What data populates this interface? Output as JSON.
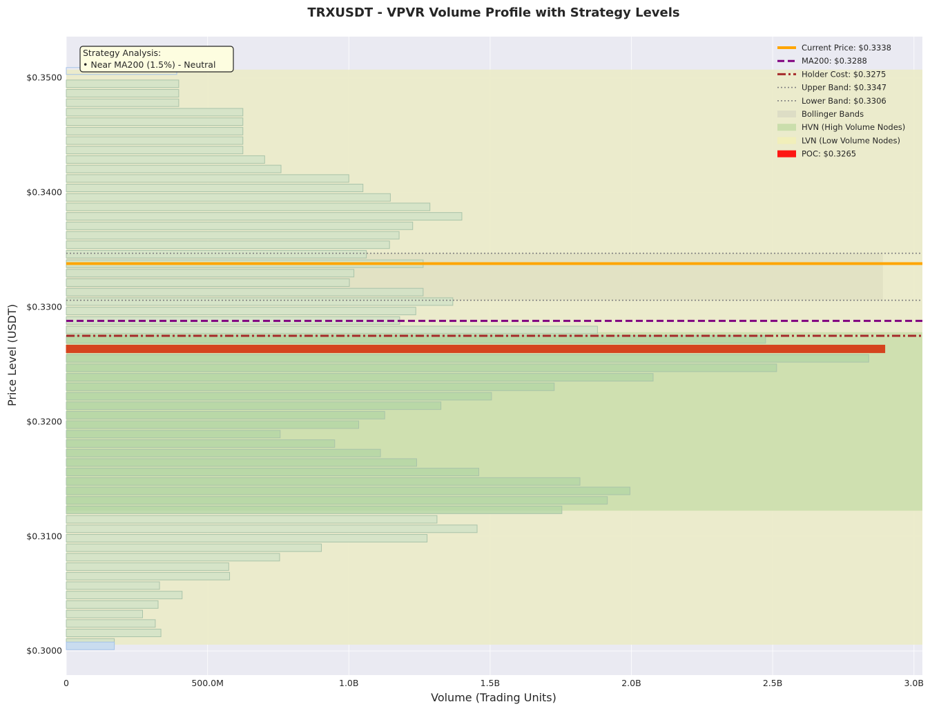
{
  "chart_data": {
    "type": "bar",
    "orientation": "horizontal",
    "title": "TRXUSDT - VPVR Volume Profile with Strategy Levels",
    "xlabel": "Volume (Trading Units)",
    "ylabel": "Price Level (USDT)",
    "xlim": [
      0,
      3030000000
    ],
    "ylim": [
      0.2979,
      0.3536
    ],
    "x_ticks": [
      0,
      500000000,
      1000000000,
      1500000000,
      2000000000,
      2500000000,
      3000000000
    ],
    "x_tick_labels": [
      "0",
      "500.0M",
      "1.0B",
      "1.5B",
      "2.0B",
      "2.5B",
      "3.0B"
    ],
    "y_ticks": [
      0.3,
      0.31,
      0.32,
      0.33,
      0.34,
      0.35
    ],
    "y_tick_labels": [
      "$0.3000",
      "$0.3100",
      "$0.3200",
      "$0.3300",
      "$0.3400",
      "$0.3500"
    ],
    "grid": true,
    "legend_position": "top-right",
    "bars": {
      "price_start": 0.30075,
      "price_step": 0.000826,
      "bar_height": 0.00066,
      "volumes": [
        170000000,
        335000000,
        315000000,
        270000000,
        325000000,
        410000000,
        330000000,
        578000000,
        575000000,
        755000000,
        903000000,
        1277000000,
        1454000000,
        1312000000,
        1754000000,
        1915000000,
        1995000000,
        1818000000,
        1460000000,
        1240000000,
        1112000000,
        950000000,
        757000000,
        1035000000,
        1127000000,
        1326000000,
        1505000000,
        1727000000,
        2077000000,
        2514000000,
        2840000000,
        2897000000,
        2475000000,
        1880000000,
        1180000000,
        1237000000,
        1368000000,
        1263000000,
        1002000000,
        1018000000,
        1263000000,
        1062000000,
        1144000000,
        1178000000,
        1226000000,
        1400000000,
        1287000000,
        1147000000,
        1050000000,
        1000000000,
        760000000,
        702000000,
        625000000,
        625000000,
        625000000,
        625000000,
        625000000,
        398000000,
        398000000,
        398000000,
        0
      ],
      "hvn_range": [
        0.31224,
        0.32781
      ],
      "poc_price": 0.3265
    },
    "zones": {
      "lvn": [
        0.30055,
        0.35072
      ],
      "hvn": [
        0.31224,
        0.32781
      ],
      "bollinger": [
        0.3306,
        0.3347
      ],
      "bollinger_x_end": 2890000000
    },
    "lines": [
      {
        "name": "Current Price: $0.3338",
        "value": 0.3338,
        "color": "#ffa500",
        "style": "solid"
      },
      {
        "name": "MA200: $0.3288",
        "value": 0.3288,
        "color": "#800080",
        "style": "dashed"
      },
      {
        "name": "Holder Cost: $0.3275",
        "value": 0.3275,
        "color": "#a52a2a",
        "style": "dashdot"
      },
      {
        "name": "Upper Band: $0.3347",
        "value": 0.3347,
        "color": "#808080",
        "style": "dotted"
      },
      {
        "name": "Lower Band: $0.3306",
        "value": 0.3306,
        "color": "#808080",
        "style": "dotted"
      }
    ],
    "legend": [
      {
        "label": "Current Price: $0.3338",
        "kind": "line",
        "color": "#ffa500",
        "style": "solid"
      },
      {
        "label": "MA200: $0.3288",
        "kind": "line",
        "color": "#800080",
        "style": "dashed"
      },
      {
        "label": "Holder Cost: $0.3275",
        "kind": "line",
        "color": "#a52a2a",
        "style": "dashdot"
      },
      {
        "label": "Upper Band: $0.3347",
        "kind": "line",
        "color": "#808080",
        "style": "dotted"
      },
      {
        "label": "Lower Band: $0.3306",
        "kind": "line",
        "color": "#808080",
        "style": "dotted"
      },
      {
        "label": "Bollinger Bands",
        "kind": "patch",
        "color": "#dcdcc4"
      },
      {
        "label": "HVN (High Volume Nodes)",
        "kind": "patch",
        "color": "#c6dda8"
      },
      {
        "label": "LVN (Low Volume Nodes)",
        "kind": "patch",
        "color": "#f2efb8"
      },
      {
        "label": "POC: $0.3265",
        "kind": "patch",
        "color": "#ff0000"
      }
    ],
    "annotation": {
      "lines": [
        "Strategy Analysis:",
        "• Near MA200 (1.5%) - Neutral"
      ]
    },
    "colors": {
      "plot_background": "#eaeaf2",
      "lvn_zone": "#ebebc9",
      "hvn_zone": "#cddfae",
      "bollinger_zone": "#e1e1c3",
      "bar_fill": "#cfe2c7",
      "bar_edge": "#a9c3a9",
      "poc_bar": "#d5441e",
      "annotation_bg": "#fdfde0"
    }
  }
}
